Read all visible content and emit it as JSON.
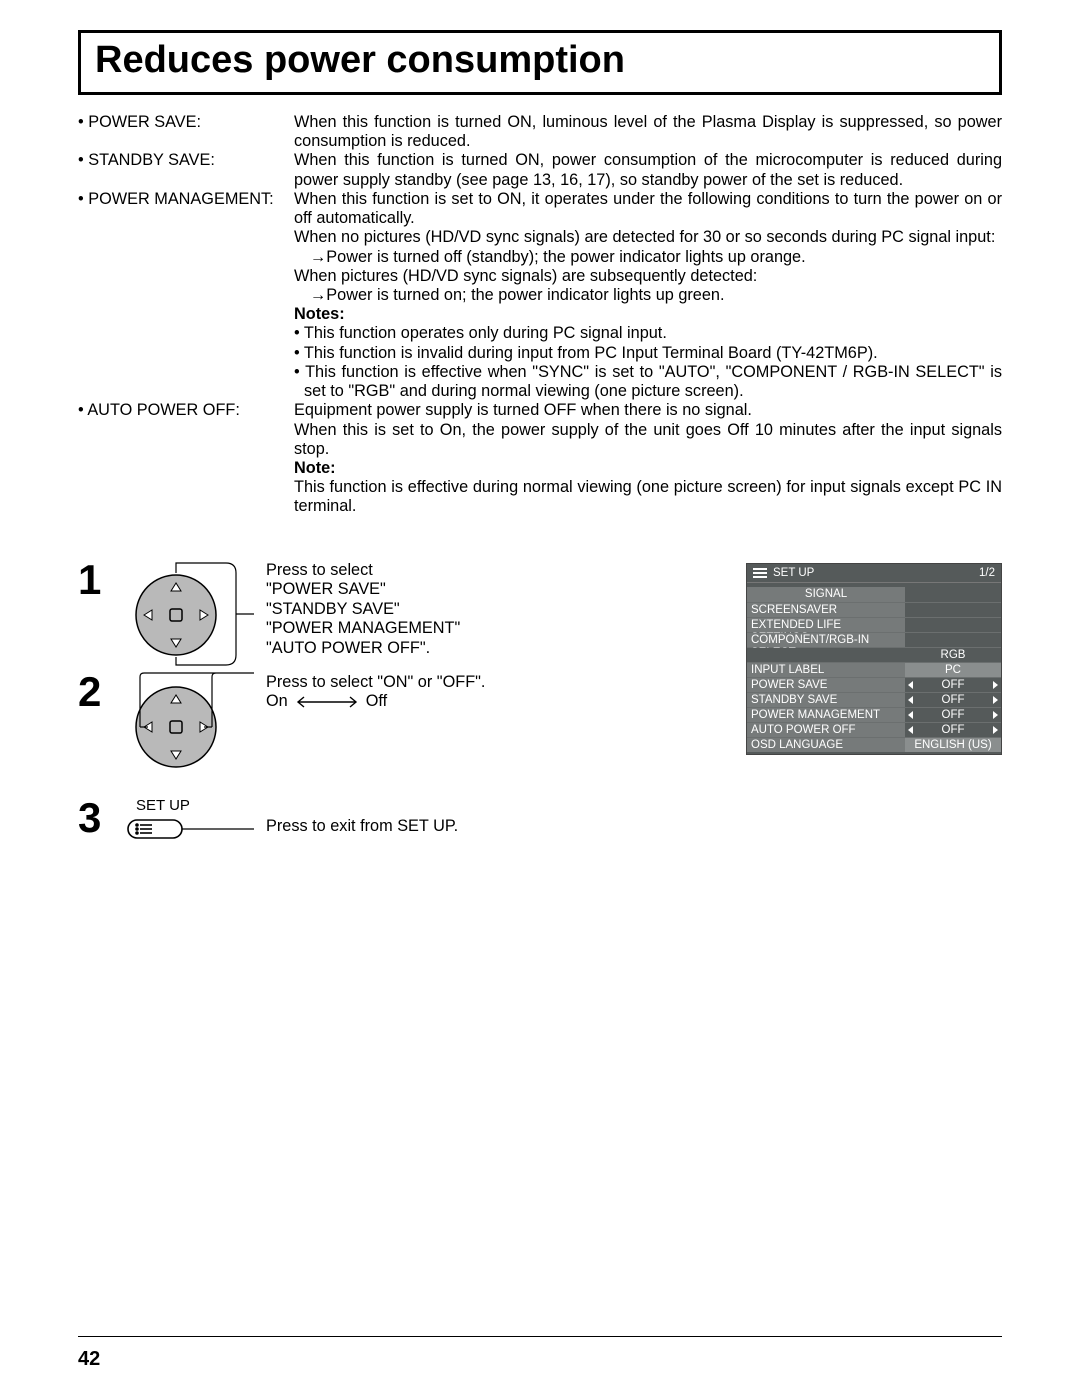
{
  "title": "Reduces power consumption",
  "page_number": "42",
  "defs": [
    {
      "label": "• POWER SAVE:",
      "body": "When this function is turned ON, luminous level of the Plasma Display is suppressed, so power consumption is reduced."
    },
    {
      "label": "• STANDBY SAVE:",
      "body": "When this function is turned ON, power consumption of the microcomputer is reduced during power supply standby (see page 13, 16, 17), so standby power of the set is reduced."
    },
    {
      "label": "• POWER MANAGEMENT:",
      "body": "When this function is set to ON, it operates under the following conditions to turn the power on or off automatically."
    }
  ],
  "pm_extra": {
    "l1": "When no pictures (HD/VD sync signals) are detected for 30 or so seconds during PC signal input:",
    "a1": "→Power is turned off (standby); the power indicator lights up orange.",
    "l2": "When pictures (HD/VD sync signals) are subsequently detected:",
    "a2": "→Power is turned on; the power indicator lights up green.",
    "notes_hd": "Notes:",
    "n1": "• This function operates only during PC signal input.",
    "n2": "• This function is invalid during input from PC Input Terminal Board (TY-42TM6P).",
    "n3": "• This function is effective when \"SYNC\" is set to \"AUTO\", \"COMPONENT / RGB-IN SELECT\" is set to \"RGB\" and during normal viewing (one picture screen)."
  },
  "apo": {
    "label": "• AUTO POWER OFF:",
    "body1": "Equipment power supply is turned OFF when there is no signal.",
    "body2": "When this is set to On, the power supply of the unit goes Off 10 minutes after the input signals stop.",
    "note_hd": "Note:",
    "note": "This function is effective during normal viewing (one picture screen) for input signals except PC IN terminal."
  },
  "steps": {
    "s1": {
      "l1": "Press to select",
      "l2": "\"POWER SAVE\"",
      "l3": "\"STANDBY SAVE\"",
      "l4": "\"POWER MANAGEMENT\"",
      "l5": "\"AUTO POWER OFF\"."
    },
    "s2": {
      "l1": "Press to select \"ON\" or \"OFF\".",
      "on": "On",
      "off": "Off"
    },
    "s3": {
      "label": "SET UP",
      "text": "Press to exit from SET UP."
    }
  },
  "osd": {
    "title": "SET UP",
    "page": "1/2",
    "rows": [
      {
        "l": "SIGNAL",
        "center": true
      },
      {
        "l": "SCREENSAVER"
      },
      {
        "l": "EXTENDED LIFE SETTINGS"
      },
      {
        "l": "COMPONENT/RGB-IN SELECT"
      },
      {
        "l": "",
        "r": "RGB",
        "dark": true
      },
      {
        "l": "INPUT LABEL",
        "r": "PC",
        "rlight": true
      },
      {
        "l": "POWER SAVE",
        "r": "OFF",
        "spin": true
      },
      {
        "l": "STANDBY SAVE",
        "r": "OFF",
        "spin": true
      },
      {
        "l": "POWER MANAGEMENT",
        "r": "OFF",
        "spin": true
      },
      {
        "l": "AUTO POWER OFF",
        "r": "OFF",
        "spin": true
      },
      {
        "l": "OSD LANGUAGE",
        "r": "ENGLISH (US)",
        "rlight": true
      }
    ]
  }
}
